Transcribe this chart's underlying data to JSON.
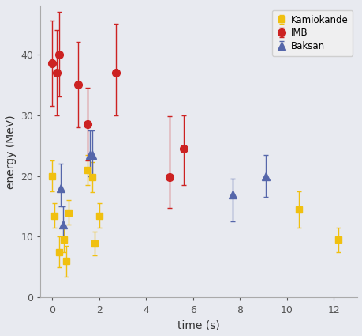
{
  "title": "",
  "xlabel": "time (s)",
  "ylabel": "energy (MeV)",
  "xlim": [
    -0.5,
    13
  ],
  "ylim": [
    0,
    48
  ],
  "background_color": "#e8eaf0",
  "legend_labels": [
    "Kamiokande",
    "IMB",
    "Baksan"
  ],
  "kamiokande": {
    "color": "#f0c010",
    "marker": "s",
    "t": [
      0.0,
      0.1,
      0.3,
      0.5,
      0.6,
      0.7,
      1.5,
      1.7,
      1.8,
      2.0,
      10.5,
      12.2
    ],
    "e": [
      20.0,
      13.5,
      7.5,
      9.5,
      6.0,
      14.0,
      21.0,
      19.8,
      8.9,
      13.5,
      14.5,
      9.5
    ],
    "e_err_lo": [
      2.5,
      2.0,
      2.5,
      2.0,
      2.5,
      2.0,
      2.5,
      2.5,
      2.0,
      2.0,
      3.0,
      2.0
    ],
    "e_err_hi": [
      2.5,
      2.0,
      2.5,
      2.0,
      2.5,
      2.0,
      2.5,
      2.5,
      2.0,
      2.0,
      3.0,
      2.0
    ]
  },
  "imb": {
    "color": "#cc2222",
    "marker": "o",
    "t": [
      0.0,
      0.2,
      0.3,
      1.1,
      1.5,
      2.7,
      5.0,
      5.6
    ],
    "e": [
      38.5,
      37.0,
      40.0,
      35.0,
      28.5,
      37.0,
      19.8,
      24.5
    ],
    "e_err_lo": [
      7.0,
      7.0,
      7.0,
      7.0,
      6.0,
      7.0,
      5.0,
      6.0
    ],
    "e_err_hi": [
      7.0,
      7.0,
      7.0,
      7.0,
      6.0,
      8.0,
      10.0,
      5.5
    ]
  },
  "baksan": {
    "color": "#5566aa",
    "marker": "^",
    "t": [
      0.35,
      0.45,
      1.6,
      1.7,
      7.7,
      9.1
    ],
    "e": [
      18.0,
      12.0,
      23.5,
      23.5,
      17.0,
      20.0
    ],
    "e_err_lo": [
      3.0,
      2.5,
      3.5,
      3.5,
      4.5,
      3.5
    ],
    "e_err_hi": [
      4.0,
      3.0,
      4.0,
      4.0,
      2.5,
      3.5
    ]
  },
  "marker_size": 6,
  "capsize": 2,
  "linewidth": 1.0,
  "xticks": [
    0,
    2,
    4,
    6,
    8,
    10,
    12
  ],
  "yticks": [
    0,
    10,
    20,
    30,
    40
  ]
}
